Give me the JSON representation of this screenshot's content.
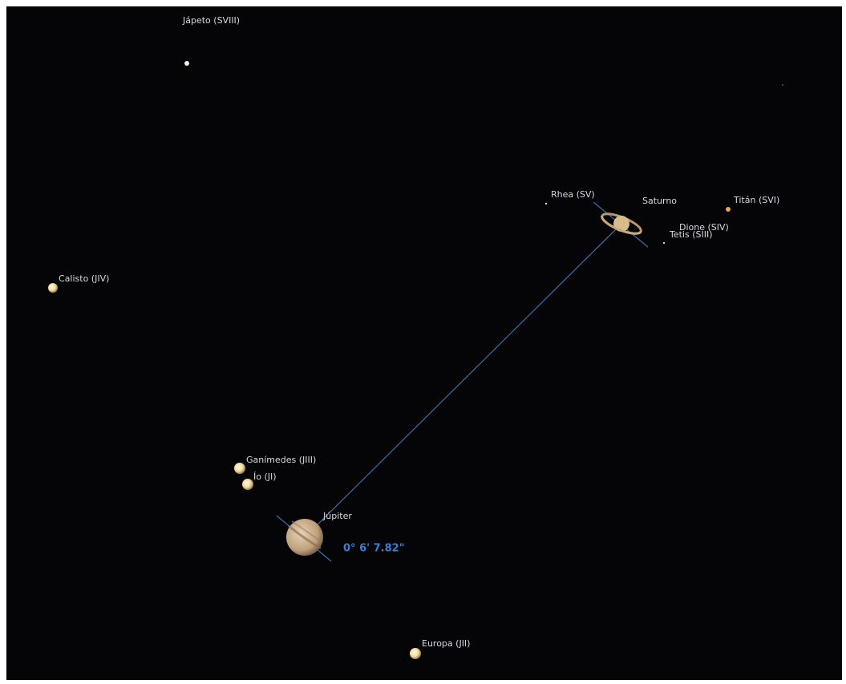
{
  "labels": {
    "japeto": "Jápeto (SVIII)",
    "calisto": "Calisto (JIV)",
    "rhea": "Rhea (SV)",
    "saturno": "Saturno",
    "titan": "Titán (SVI)",
    "dione": "Dione (SIV)",
    "tetis": "Tetis (SIII)",
    "ganimedes": "Ganímedes (JIII)",
    "io": "Ío (JI)",
    "jupiter": "Júpiter",
    "europa": "Europa (JII)"
  },
  "measurement": "0° 6' 7.82\""
}
